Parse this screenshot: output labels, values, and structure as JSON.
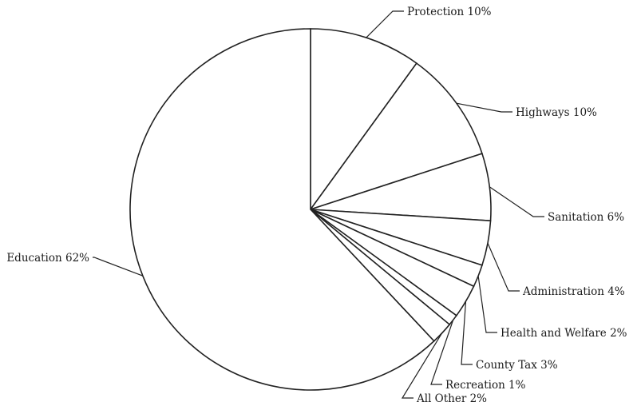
{
  "chart_data": {
    "type": "pie",
    "title": "",
    "slices": [
      {
        "label": "Protection 10%",
        "value": 10
      },
      {
        "label": "Highways 10%",
        "value": 10
      },
      {
        "label": "Sanitation 6%",
        "value": 6
      },
      {
        "label": "Administration 4%",
        "value": 4
      },
      {
        "label": "Health and Welfare 2%",
        "value": 2
      },
      {
        "label": "County Tax 3%",
        "value": 3
      },
      {
        "label": "Recreation 1%",
        "value": 1
      },
      {
        "label": "All Other 2%",
        "value": 2
      },
      {
        "label": "Education 62%",
        "value": 62
      }
    ],
    "start_angle_deg": 0,
    "direction": "clockwise",
    "legend": "none",
    "slice_fill": "#ffffff",
    "stroke_color": "#222222"
  }
}
